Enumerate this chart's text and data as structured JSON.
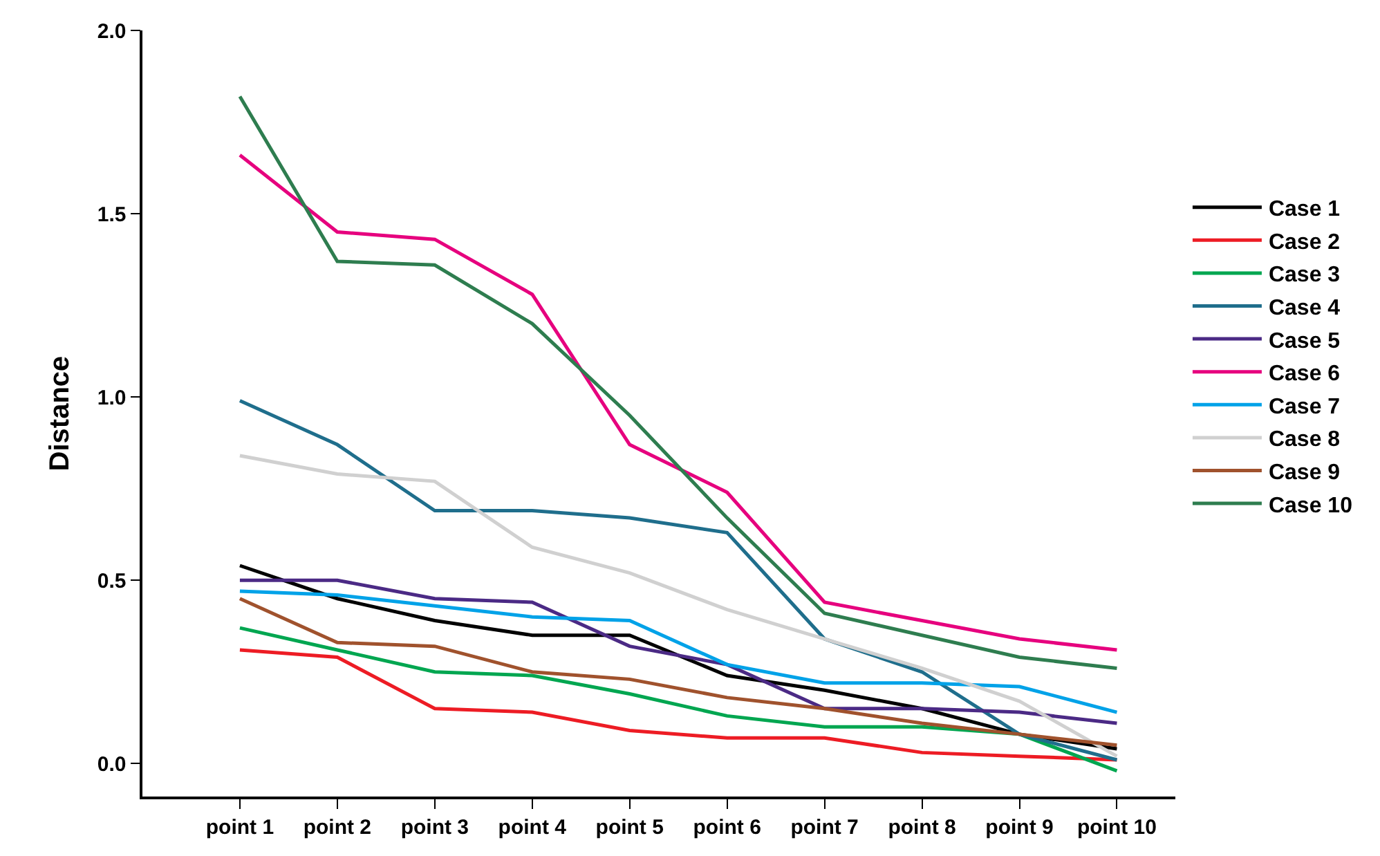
{
  "chart_data": {
    "type": "line",
    "ylabel": "Distance",
    "categories": [
      "point 1",
      "point 2",
      "point 3",
      "point 4",
      "point 5",
      "point 6",
      "point 7",
      "point 8",
      "point 9",
      "point 10"
    ],
    "ylim": [
      -0.09,
      2.0
    ],
    "yticks": [
      {
        "value": 0,
        "label": "0.0"
      },
      0.5,
      {
        "value": 1,
        "label": "1.0"
      },
      1.5,
      {
        "value": 2,
        "label": "2.0"
      }
    ],
    "legend": "right",
    "marker": "none",
    "line_style": "solid",
    "series": [
      {
        "name": "Case 1",
        "color": "#000000",
        "values": [
          0.54,
          0.45,
          0.39,
          0.35,
          0.35,
          0.24,
          0.2,
          0.15,
          0.08,
          0.04
        ]
      },
      {
        "name": "Case 2",
        "color": "#ed1c24",
        "values": [
          0.31,
          0.29,
          0.15,
          0.14,
          0.09,
          0.07,
          0.07,
          0.03,
          0.02,
          0.01
        ]
      },
      {
        "name": "Case 3",
        "color": "#00a650",
        "values": [
          0.37,
          0.31,
          0.25,
          0.24,
          0.19,
          0.13,
          0.1,
          0.1,
          0.08,
          -0.02
        ]
      },
      {
        "name": "Case 4",
        "color": "#1f6e8c",
        "values": [
          0.99,
          0.87,
          0.69,
          0.69,
          0.67,
          0.63,
          0.34,
          0.25,
          0.08,
          0.01
        ]
      },
      {
        "name": "Case 5",
        "color": "#4b2a85",
        "values": [
          0.5,
          0.5,
          0.45,
          0.44,
          0.32,
          0.27,
          0.15,
          0.15,
          0.14,
          0.11
        ]
      },
      {
        "name": "Case 6",
        "color": "#e6007e",
        "values": [
          1.66,
          1.45,
          1.43,
          1.28,
          0.87,
          0.74,
          0.44,
          0.39,
          0.34,
          0.31
        ]
      },
      {
        "name": "Case 7",
        "color": "#00a2e8",
        "values": [
          0.47,
          0.46,
          0.43,
          0.4,
          0.39,
          0.27,
          0.22,
          0.22,
          0.21,
          0.14
        ]
      },
      {
        "name": "Case 8",
        "color": "#d0d0d0",
        "values": [
          0.84,
          0.79,
          0.77,
          0.59,
          0.52,
          0.42,
          0.34,
          0.26,
          0.17,
          0.02
        ]
      },
      {
        "name": "Case 9",
        "color": "#a0522d",
        "values": [
          0.45,
          0.33,
          0.32,
          0.25,
          0.23,
          0.18,
          0.15,
          0.11,
          0.08,
          0.05
        ]
      },
      {
        "name": "Case 10",
        "color": "#2e7d4f",
        "values": [
          1.82,
          1.37,
          1.36,
          1.2,
          0.95,
          0.67,
          0.41,
          0.35,
          0.29,
          0.26
        ]
      }
    ]
  }
}
